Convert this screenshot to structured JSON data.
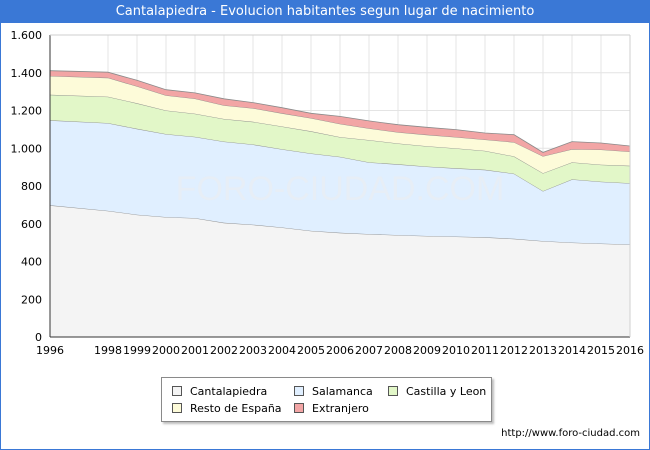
{
  "title": "Cantalapiedra - Evolucion habitantes segun lugar de nacimiento",
  "source": "http://www.foro-ciudad.com",
  "watermark": "FORO-CIUDAD.COM",
  "colors": {
    "header": "#3a78d6",
    "Cantalapiedra": "#f4f4f4",
    "Salamanca": "#e0efff",
    "Castilla y Leon": "#e2f7c8",
    "Resto de España": "#fdfbd9",
    "Extranjero": "#f2a5a5"
  },
  "chart_data": {
    "type": "area",
    "stacked": true,
    "title": "Cantalapiedra - Evolucion habitantes segun lugar de nacimiento",
    "x": [
      1996,
      1998,
      1999,
      2000,
      2001,
      2002,
      2003,
      2004,
      2005,
      2006,
      2007,
      2008,
      2009,
      2010,
      2011,
      2012,
      2013,
      2014,
      2015,
      2016
    ],
    "ylim": [
      0,
      1600
    ],
    "yticks": [
      0,
      200,
      400,
      600,
      800,
      1000,
      1200,
      1400,
      1600
    ],
    "ytick_labels": [
      "0",
      "200",
      "400",
      "600",
      "800",
      "1.000",
      "1.200",
      "1.400",
      "1.600"
    ],
    "grid": true,
    "legend_position": "bottom",
    "series": [
      {
        "name": "Cantalapiedra",
        "values": [
          698,
          668,
          648,
          635,
          630,
          605,
          595,
          580,
          562,
          552,
          545,
          540,
          535,
          532,
          528,
          520,
          508,
          500,
          495,
          490
        ]
      },
      {
        "name": "Salamanca",
        "values": [
          450,
          465,
          455,
          440,
          430,
          430,
          425,
          415,
          410,
          402,
          380,
          375,
          368,
          362,
          358,
          345,
          265,
          335,
          328,
          325
        ]
      },
      {
        "name": "Castilla y Leon",
        "values": [
          135,
          140,
          135,
          125,
          123,
          120,
          120,
          120,
          118,
          105,
          118,
          110,
          108,
          105,
          100,
          92,
          95,
          90,
          90,
          92
        ]
      },
      {
        "name": "Resto de España",
        "values": [
          100,
          100,
          90,
          80,
          80,
          72,
          72,
          70,
          70,
          70,
          62,
          60,
          60,
          60,
          60,
          75,
          90,
          70,
          80,
          75
        ]
      },
      {
        "name": "Extranjero",
        "values": [
          28,
          30,
          32,
          30,
          30,
          35,
          30,
          30,
          25,
          40,
          40,
          40,
          40,
          40,
          35,
          40,
          20,
          40,
          35,
          30
        ]
      }
    ]
  }
}
